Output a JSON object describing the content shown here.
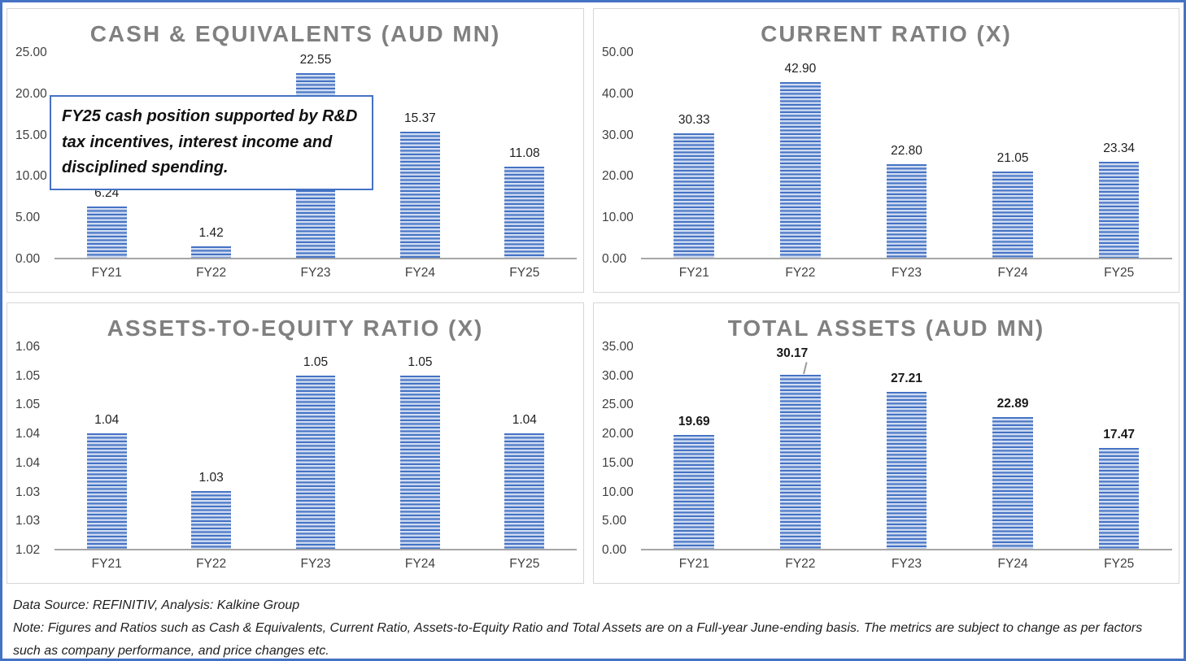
{
  "page": {
    "outer_border_color": "#4472c4",
    "background": "#ffffff"
  },
  "colors": {
    "bar_stripe_dark": "#4472c4",
    "bar_stripe_light": "#b4c6e7",
    "title_text": "#808080",
    "axis_text": "#404040",
    "axis_line": "#a6a6a6",
    "panel_border": "#d6d6d6",
    "annotation_border": "#4472c4"
  },
  "chart_data": [
    {
      "type": "bar",
      "title": "CASH & EQUIVALENTS (AUD MN)",
      "categories": [
        "FY21",
        "FY22",
        "FY23",
        "FY24",
        "FY25"
      ],
      "values": [
        6.24,
        1.42,
        22.55,
        15.37,
        11.08
      ],
      "value_labels": [
        "6.24",
        "1.42",
        "22.55",
        "15.37",
        "11.08"
      ],
      "xlabel": "",
      "ylabel": "",
      "ylim": [
        0,
        25
      ],
      "ytick_labels": [
        "0.00",
        "5.00",
        "10.00",
        "15.00",
        "20.00",
        "25.00"
      ],
      "grid": false,
      "legend": false,
      "bold_value_labels": false,
      "annotation": "FY25 cash position supported by R&D tax incentives, interest income and disciplined spending."
    },
    {
      "type": "bar",
      "title": "CURRENT RATIO (X)",
      "categories": [
        "FY21",
        "FY22",
        "FY23",
        "FY24",
        "FY25"
      ],
      "values": [
        30.33,
        42.9,
        22.8,
        21.05,
        23.34
      ],
      "value_labels": [
        "30.33",
        "42.90",
        "22.80",
        "21.05",
        "23.34"
      ],
      "xlabel": "",
      "ylabel": "",
      "ylim": [
        0,
        50
      ],
      "ytick_labels": [
        "0.00",
        "10.00",
        "20.00",
        "30.00",
        "40.00",
        "50.00"
      ],
      "grid": false,
      "legend": false,
      "bold_value_labels": false
    },
    {
      "type": "bar",
      "title": "ASSETS-TO-EQUITY RATIO (X)",
      "categories": [
        "FY21",
        "FY22",
        "FY23",
        "FY24",
        "FY25"
      ],
      "values": [
        1.04,
        1.03,
        1.05,
        1.05,
        1.04
      ],
      "value_labels": [
        "1.04",
        "1.03",
        "1.05",
        "1.05",
        "1.04"
      ],
      "xlabel": "",
      "ylabel": "",
      "ylim": [
        1.02,
        1.055
      ],
      "ytick_labels": [
        "1.02",
        "1.03",
        "1.03",
        "1.04",
        "1.04",
        "1.05",
        "1.05",
        "1.06"
      ],
      "grid": false,
      "legend": false,
      "bold_value_labels": false
    },
    {
      "type": "bar",
      "title": "TOTAL ASSETS (AUD MN)",
      "categories": [
        "FY21",
        "FY22",
        "FY23",
        "FY24",
        "FY25"
      ],
      "values": [
        19.69,
        30.17,
        27.21,
        22.89,
        17.47
      ],
      "value_labels": [
        "19.69",
        "30.17",
        "27.21",
        "22.89",
        "17.47"
      ],
      "xlabel": "",
      "ylabel": "",
      "ylim": [
        0,
        35
      ],
      "ytick_labels": [
        "0.00",
        "5.00",
        "10.00",
        "15.00",
        "20.00",
        "25.00",
        "30.00",
        "35.00"
      ],
      "grid": false,
      "legend": false,
      "bold_value_labels": true,
      "leader_line_index": 1
    }
  ],
  "footer": {
    "source_line": "Data Source: REFINITIV, Analysis: Kalkine Group",
    "note_line": "Note: Figures and Ratios such as Cash & Equivalents, Current Ratio, Assets-to-Equity Ratio and Total Assets are on a Full-year June-ending basis. The metrics are subject to change as per factors such as company performance, and price changes etc."
  }
}
